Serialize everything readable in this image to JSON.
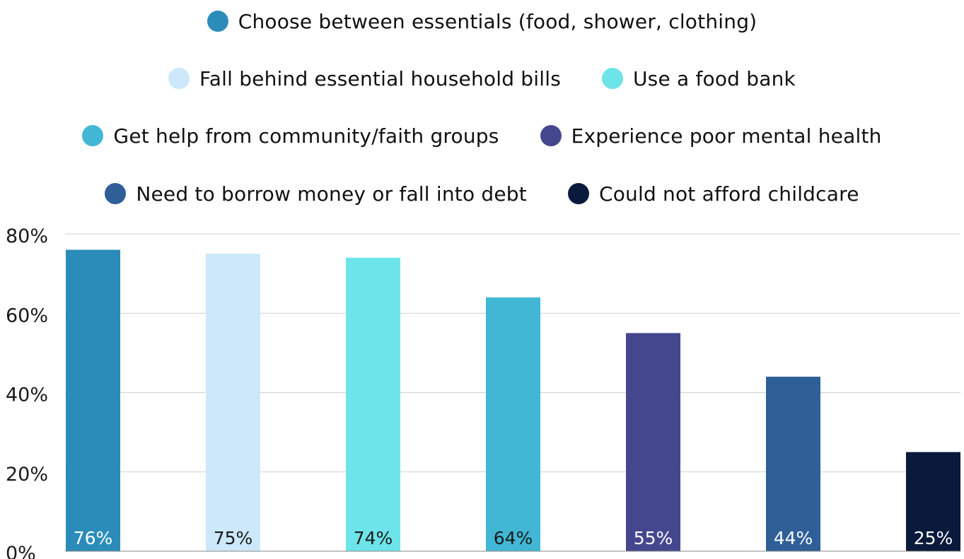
{
  "chart_data": {
    "type": "bar",
    "title": "",
    "xlabel": "",
    "ylabel": "",
    "ylim": [
      0,
      80
    ],
    "y_ticks": [
      "0%",
      "20%",
      "40%",
      "60%",
      "80%"
    ],
    "grid": true,
    "legend_position": "top",
    "series": [
      {
        "name": "Choose between essentials (food, shower, clothing)",
        "value": 76,
        "label": "76%",
        "color": "#2B8CBA"
      },
      {
        "name": "Fall behind essential household bills",
        "value": 75,
        "label": "75%",
        "color": "#CCE8FA"
      },
      {
        "name": "Use a food bank",
        "value": 74,
        "label": "74%",
        "color": "#6DE4E9"
      },
      {
        "name": "Get help from community/faith groups",
        "value": 64,
        "label": "64%",
        "color": "#42B7D5"
      },
      {
        "name": "Experience poor mental health",
        "value": 55,
        "label": "55%",
        "color": "#45478E"
      },
      {
        "name": "Need to borrow money or fall into debt",
        "value": 44,
        "label": "44%",
        "color": "#2E5F97"
      },
      {
        "name": "Could not afford childcare",
        "value": 25,
        "label": "25%",
        "color": "#0A1A3C"
      }
    ],
    "label_colors": [
      "#ffffff",
      "#1a1a1a",
      "#1a1a1a",
      "#1a1a1a",
      "#ffffff",
      "#ffffff",
      "#ffffff"
    ],
    "legend_rows": [
      [
        0
      ],
      [
        1,
        2
      ],
      [
        3,
        4
      ],
      [
        5,
        6
      ]
    ]
  }
}
